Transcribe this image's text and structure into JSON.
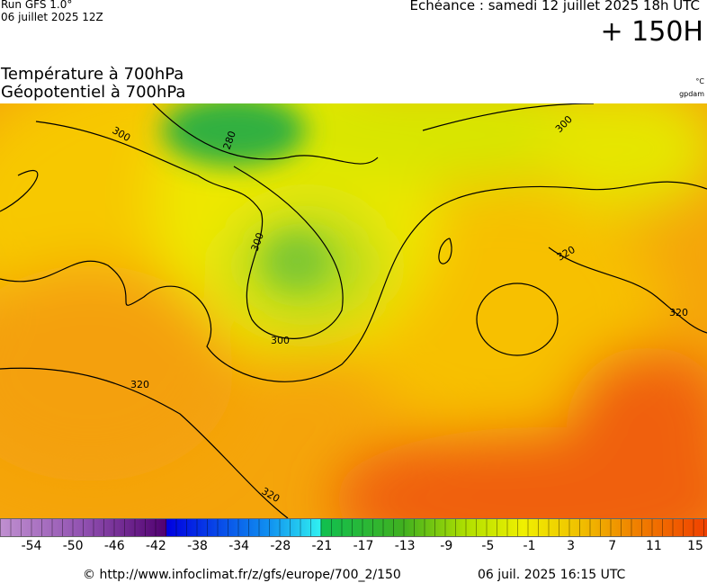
{
  "header": {
    "run": "Run GFS 1.0°",
    "run_date": "06 juillet 2025 12Z",
    "valid_time": "Echéance : samedi 12 juillet 2025 18h UTC",
    "lead_time": "+ 150H",
    "title_1": "Température à 700hPa",
    "title_2": "Géopotentiel à 700hPa",
    "unit_1": "°C",
    "unit_2": "gpdam"
  },
  "map": {
    "contour_labels": [
      "300",
      "280",
      "300",
      "300",
      "320",
      "320",
      "300",
      "320",
      "320"
    ]
  },
  "colorbar": {
    "ticks": [
      -54,
      -50,
      -46,
      -42,
      -38,
      -34,
      -28,
      -21,
      -17,
      -13,
      -9,
      -5,
      -1,
      3,
      7,
      11,
      15
    ]
  },
  "footer": {
    "source": "© http://www.infoclimat.fr/z/gfs/europe/700_2/150",
    "generated": "06 juil. 2025 16:15 UTC"
  }
}
